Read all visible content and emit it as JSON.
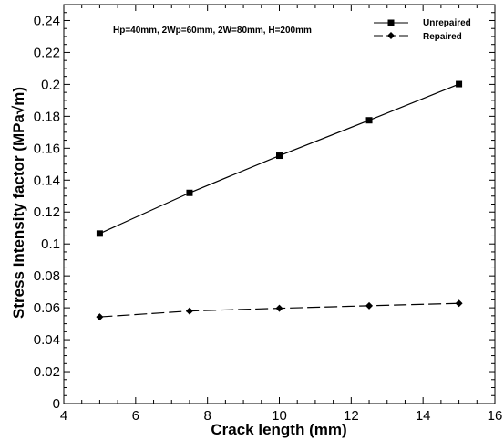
{
  "chart_data": {
    "type": "line",
    "annotation": "Hp=40mm, 2Wp=60mm, 2W=80mm, H=200mm",
    "xlabel": "Crack length (mm)",
    "ylabel": "Stress Intensity factor (MPa√m)",
    "xlim": [
      4,
      16
    ],
    "ylim": [
      0,
      0.25
    ],
    "xticks": [
      4,
      6,
      8,
      10,
      12,
      14,
      16
    ],
    "xtick_labels": [
      "4",
      "6",
      "8",
      "10",
      "12",
      "14",
      "16"
    ],
    "yticks": [
      0,
      0.02,
      0.04,
      0.06,
      0.08,
      0.1,
      0.12,
      0.14,
      0.16,
      0.18,
      0.2,
      0.22,
      0.24
    ],
    "ytick_labels": [
      "0",
      "0.02",
      "0.04",
      "0.06",
      "0.08",
      "0.1",
      "0.12",
      "0.14",
      "0.16",
      "0.18",
      "0.2",
      "0.22",
      "0.24"
    ],
    "grid": false,
    "legend_position": "top-right",
    "x": [
      5,
      7.5,
      10,
      12.5,
      15
    ],
    "series": [
      {
        "name": "Unrepaired",
        "marker": "square",
        "line_style": "solid",
        "color": "#000000",
        "values": [
          0.1065,
          0.132,
          0.1553,
          0.1775,
          0.2002
        ]
      },
      {
        "name": "Repaired",
        "marker": "diamond",
        "line_style": "dashed",
        "color": "#000000",
        "values": [
          0.0543,
          0.058,
          0.0597,
          0.0613,
          0.0628
        ]
      }
    ]
  }
}
